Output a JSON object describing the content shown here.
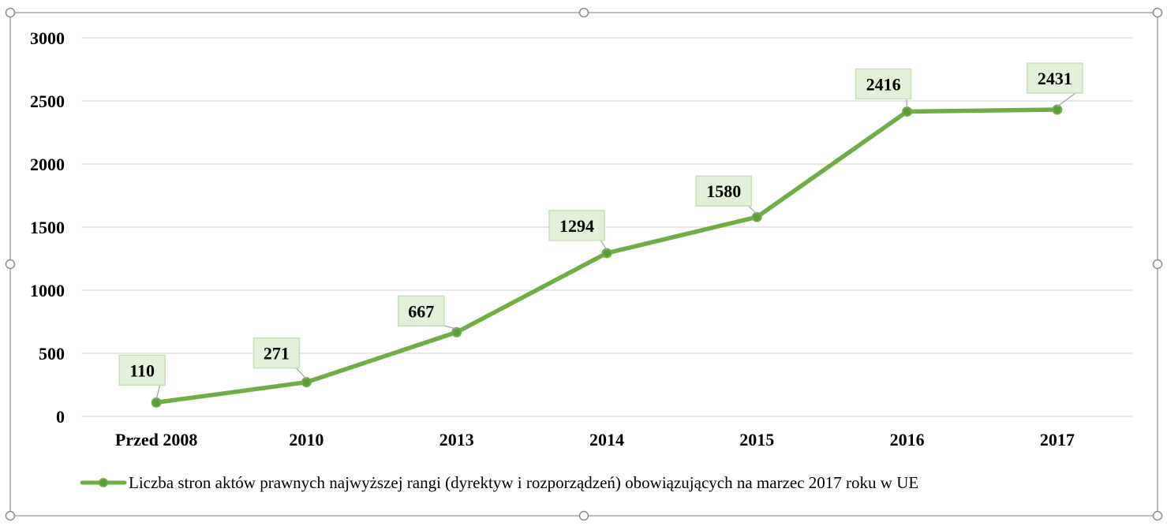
{
  "chart_data": {
    "type": "line",
    "categories": [
      "Przed 2008",
      "2010",
      "2013",
      "2014",
      "2015",
      "2016",
      "2017"
    ],
    "series": [
      {
        "name": "Liczba stron aktów prawnych najwyższej rangi (dyrektyw i rozporządzeń) obowiązujących  na marzec 2017 roku w UE",
        "values": [
          110,
          271,
          667,
          1294,
          1580,
          2416,
          2431
        ]
      }
    ],
    "y_ticks": [
      "0",
      "500",
      "1000",
      "1500",
      "2000",
      "2500",
      "3000"
    ],
    "ylim": [
      0,
      3000
    ],
    "grid": true,
    "legend_position": "bottom",
    "data_labels": true,
    "colors": {
      "line": "#70AD47",
      "marker_fill": "#5B9B3A",
      "label_bg": "#E2F0D9",
      "label_border": "#C5E0B4",
      "grid": "#D9D9D9",
      "leader": "#A6A6A6",
      "frame": "#A6A6A6"
    }
  }
}
